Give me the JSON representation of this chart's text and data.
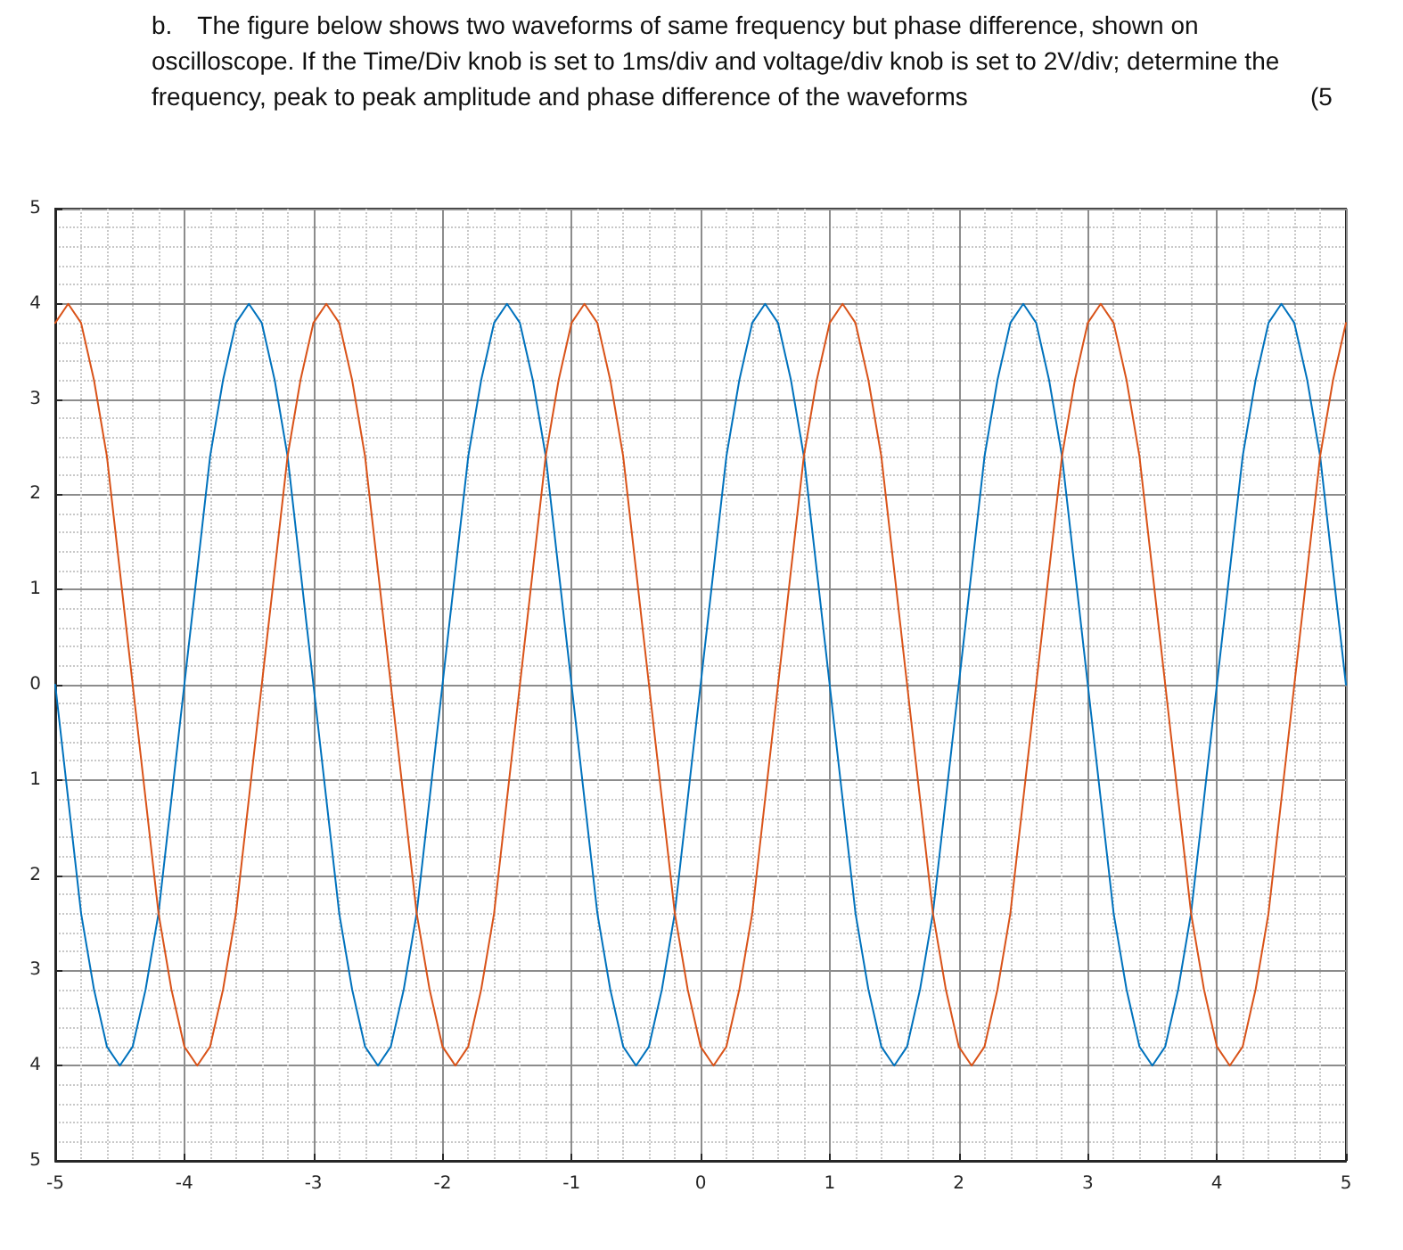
{
  "chart_data": {
    "type": "line",
    "title": "b. The figure below shows two waveforms of same frequency but phase difference, shown on oscilloscope. If the Time/Div knob is set to 1ms/div and voltage/div knob is set to 2V/div; determine the frequency, peak to peak amplitude and phase difference of the waveforms",
    "annotations": [
      "(5"
    ],
    "x": [
      -5,
      -4.9,
      -4.8,
      -4.7,
      -4.6,
      -4.5,
      -4.4,
      -4.3,
      -4.2,
      -4.1,
      -4,
      -3.9,
      -3.8,
      -3.7,
      -3.6,
      -3.5,
      -3.4,
      -3.3,
      -3.2,
      -3.1,
      -3,
      -2.9,
      -2.8,
      -2.7,
      -2.6,
      -2.5,
      -2.4,
      -2.3,
      -2.2,
      -2.1,
      -2,
      -1.9,
      -1.8,
      -1.7,
      -1.6,
      -1.5,
      -1.4,
      -1.3,
      -1.2,
      -1.1,
      -1,
      -0.9,
      -0.8,
      -0.7,
      -0.6,
      -0.5,
      -0.4,
      -0.3,
      -0.2,
      -0.1,
      0,
      0.1,
      0.2,
      0.3,
      0.4,
      0.5,
      0.6,
      0.7,
      0.8,
      0.9,
      1,
      1.1,
      1.2,
      1.3,
      1.4,
      1.5,
      1.6,
      1.7,
      1.8,
      1.9,
      2,
      2.1,
      2.2,
      2.3,
      2.4,
      2.5,
      2.6,
      2.7,
      2.8,
      2.9,
      3,
      3.1,
      3.2,
      3.3,
      3.4,
      3.5,
      3.6,
      3.7,
      3.8,
      3.9,
      4,
      4.1,
      4.2,
      4.3,
      4.4,
      4.5,
      4.6,
      4.7,
      4.8,
      4.9,
      5
    ],
    "series": [
      {
        "color": "#0072bd",
        "values": [
          0,
          -1.2,
          -2.4,
          -3.2,
          -3.8,
          -4,
          -3.8,
          -3.2,
          -2.4,
          -1.2,
          0,
          1.2,
          2.4,
          3.2,
          3.8,
          4,
          3.8,
          3.2,
          2.4,
          1.2,
          0,
          -1.2,
          -2.4,
          -3.2,
          -3.8,
          -4,
          -3.8,
          -3.2,
          -2.4,
          -1.2,
          0,
          1.2,
          2.4,
          3.2,
          3.8,
          4,
          3.8,
          3.2,
          2.4,
          1.2,
          0,
          -1.2,
          -2.4,
          -3.2,
          -3.8,
          -4,
          -3.8,
          -3.2,
          -2.4,
          -1.2,
          0,
          1.2,
          2.4,
          3.2,
          3.8,
          4,
          3.8,
          3.2,
          2.4,
          1.2,
          0,
          -1.2,
          -2.4,
          -3.2,
          -3.8,
          -4,
          -3.8,
          -3.2,
          -2.4,
          -1.2,
          0,
          1.2,
          2.4,
          3.2,
          3.8,
          4,
          3.8,
          3.2,
          2.4,
          1.2,
          0,
          -1.2,
          -2.4,
          -3.2,
          -3.8,
          -4,
          -3.8,
          -3.2,
          -2.4,
          -1.2,
          0,
          1.2,
          2.4,
          3.2,
          3.8,
          4,
          3.8,
          3.2,
          2.4,
          1.2,
          0
        ]
      },
      {
        "color": "#d95319",
        "values": [
          3.8,
          4,
          3.8,
          3.2,
          2.4,
          1.2,
          0,
          -1.2,
          -2.4,
          -3.2,
          -3.8,
          -4,
          -3.8,
          -3.2,
          -2.4,
          -1.2,
          0,
          1.2,
          2.4,
          3.2,
          3.8,
          4,
          3.8,
          3.2,
          2.4,
          1.2,
          0,
          -1.2,
          -2.4,
          -3.2,
          -3.8,
          -4,
          -3.8,
          -3.2,
          -2.4,
          -1.2,
          0,
          1.2,
          2.4,
          3.2,
          3.8,
          4,
          3.8,
          3.2,
          2.4,
          1.2,
          0,
          -1.2,
          -2.4,
          -3.2,
          -3.8,
          -4,
          -3.8,
          -3.2,
          -2.4,
          -1.2,
          0,
          1.2,
          2.4,
          3.2,
          3.8,
          4,
          3.8,
          3.2,
          2.4,
          1.2,
          0,
          -1.2,
          -2.4,
          -3.2,
          -3.8,
          -4,
          -3.8,
          -3.2,
          -2.4,
          -1.2,
          0,
          1.2,
          2.4,
          3.2,
          3.8,
          4,
          3.8,
          3.2,
          2.4,
          1.2,
          0,
          -1.2,
          -2.4,
          -3.2,
          -3.8,
          -4,
          -3.8,
          -3.2,
          -2.4,
          -1.2,
          0,
          1.2,
          2.4,
          3.2,
          3.8
        ]
      }
    ],
    "xlim": [
      -5,
      5
    ],
    "xticks": [
      -5,
      -4,
      -3,
      -2,
      -1,
      0,
      1,
      2,
      3,
      4,
      5
    ],
    "ylim": [
      -5,
      5
    ],
    "yticks": [
      {
        "value": -5,
        "label": "5"
      },
      {
        "value": -4,
        "label": "4"
      },
      {
        "value": -3,
        "label": "3"
      },
      {
        "value": -2,
        "label": "2"
      },
      {
        "value": -1,
        "label": "1"
      },
      0,
      1,
      2,
      3,
      4,
      5
    ],
    "grid": true,
    "marker": "none",
    "line_style": "solid"
  }
}
